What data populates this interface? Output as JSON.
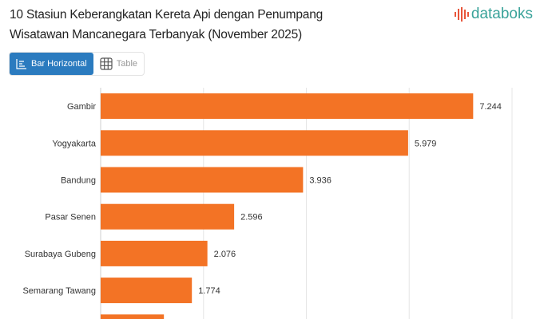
{
  "header": {
    "title": "10 Stasiun Keberangkatan Kereta Api dengan Penumpang Wisatawan Mancanegara Terbanyak (November 2025)",
    "logo_text": "databoks"
  },
  "tabs": [
    {
      "label": "Bar Horizontal",
      "icon": "bar-chart-icon",
      "active": true
    },
    {
      "label": "Table",
      "icon": "table-icon",
      "active": false
    }
  ],
  "colors": {
    "bar": "#f37325",
    "accent": "#2b7bbf",
    "logo": "#3aa39a",
    "grid": "#e6e6e6"
  },
  "chart_data": {
    "type": "bar",
    "orientation": "horizontal",
    "title": "10 Stasiun Keberangkatan Kereta Api dengan Penumpang Wisatawan Mancanegara Terbanyak (November 2025)",
    "categories": [
      "Gambir",
      "Yogyakarta",
      "Bandung",
      "Pasar Senen",
      "Surabaya Gubeng",
      "Semarang Tawang"
    ],
    "values": [
      7244,
      5979,
      3936,
      2596,
      2076,
      1774
    ],
    "value_labels": [
      "7.244",
      "5.979",
      "3.936",
      "2.596",
      "2.076",
      "1.774"
    ],
    "partial_bar_value": 1230,
    "xlim": [
      0,
      8000
    ],
    "grid_step": 2000,
    "grid": true
  }
}
